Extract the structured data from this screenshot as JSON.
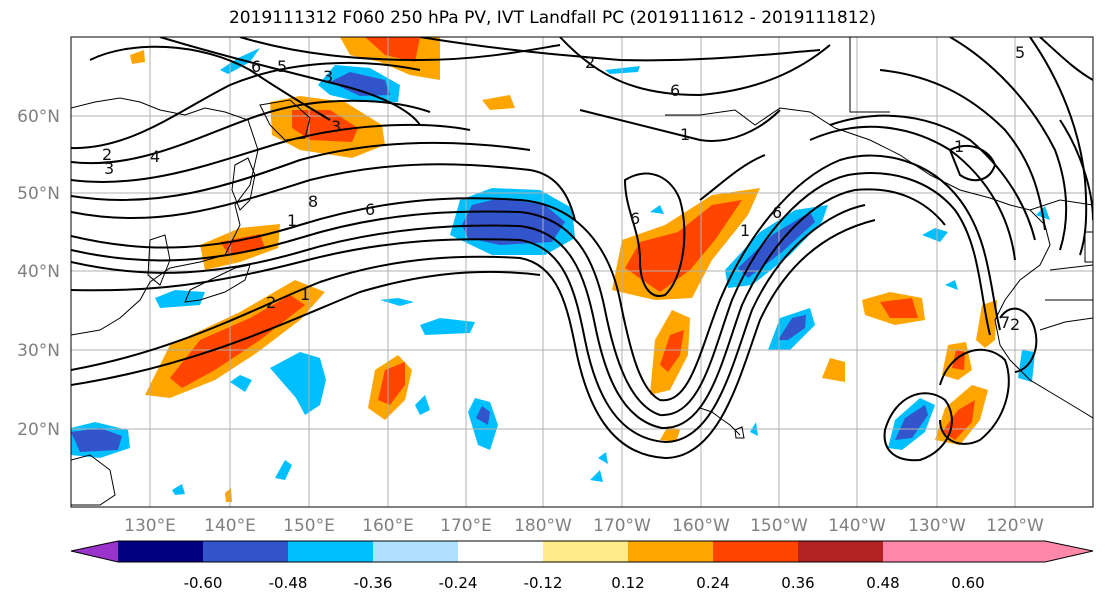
{
  "title": "2019111312 F060 250 hPa PV, IVT Landfall PC (2019111612 - 2019111812)",
  "lat_labels": [
    "60°N",
    "50°N",
    "40°N",
    "30°N",
    "20°N"
  ],
  "lon_labels": [
    "130°E",
    "140°E",
    "150°E",
    "160°E",
    "170°E",
    "180°W",
    "170°W",
    "160°W",
    "150°W",
    "140°W",
    "130°W",
    "120°W"
  ],
  "colorbar": {
    "colors": [
      "#9933cc",
      "#000080",
      "#3355cc",
      "#00bfff",
      "#b0e0ff",
      "#ffffff",
      "#ffeb88",
      "#ffa500",
      "#ff4500",
      "#b22222",
      "#ff88aa"
    ],
    "tick_labels": [
      "-0.60",
      "-0.48",
      "-0.36",
      "-0.24",
      "-0.12",
      "0.12",
      "0.24",
      "0.36",
      "0.48",
      "0.60"
    ]
  },
  "contour_labels": [
    "6",
    "5",
    "3",
    "2",
    "3",
    "4",
    "3",
    "8",
    "6",
    "1",
    "2",
    "1",
    "6",
    "1",
    "6",
    "1",
    "2",
    "5",
    "6",
    "1",
    "7",
    "2"
  ]
}
